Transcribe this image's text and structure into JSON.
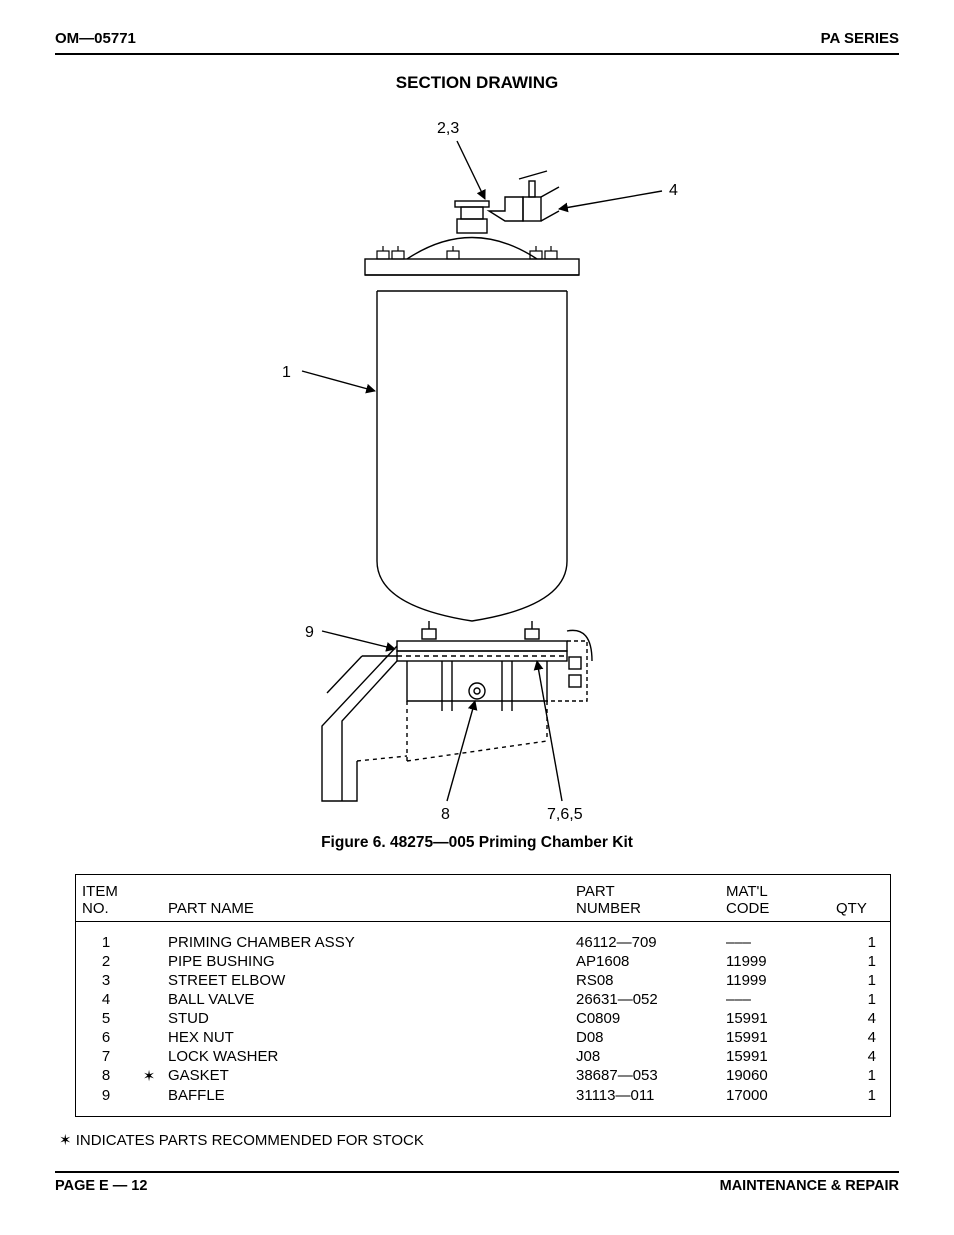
{
  "header": {
    "left": "OM—05771",
    "right": "PA SERIES"
  },
  "section_title": "SECTION DRAWING",
  "figure_caption": "Figure 6. 48275—005 Priming Chamber Kit",
  "drawing": {
    "callouts": {
      "c1": "1",
      "c23": "2,3",
      "c4": "4",
      "c9": "9",
      "c8": "8",
      "c765": "7,6,5"
    },
    "stroke": "#000000",
    "fill": "#ffffff",
    "font_family": "Verdana, Geneva, sans-serif",
    "font_size": 16
  },
  "table": {
    "headers": {
      "item": "ITEM\nNO.",
      "star": "",
      "name": "PART NAME",
      "part": "PART\nNUMBER",
      "matl": "MAT'L\nCODE",
      "qty": "QTY"
    },
    "rows": [
      {
        "item": "1",
        "star": "",
        "name": "PRIMING CHAMBER ASSY",
        "part": "46112—709",
        "matl": "–––",
        "qty": "1"
      },
      {
        "item": "2",
        "star": "",
        "name": "PIPE BUSHING",
        "part": "AP1608",
        "matl": "11999",
        "qty": "1"
      },
      {
        "item": "3",
        "star": "",
        "name": "STREET ELBOW",
        "part": "RS08",
        "matl": "11999",
        "qty": "1"
      },
      {
        "item": "4",
        "star": "",
        "name": "BALL VALVE",
        "part": "26631—052",
        "matl": "–––",
        "qty": "1"
      },
      {
        "item": "5",
        "star": "",
        "name": "STUD",
        "part": "C0809",
        "matl": "15991",
        "qty": "4"
      },
      {
        "item": "6",
        "star": "",
        "name": "HEX NUT",
        "part": "D08",
        "matl": "15991",
        "qty": "4"
      },
      {
        "item": "7",
        "star": "",
        "name": "LOCK WASHER",
        "part": "J08",
        "matl": "15991",
        "qty": "4"
      },
      {
        "item": "8",
        "star": "✶",
        "name": "GASKET",
        "part": "38687—053",
        "matl": "19060",
        "qty": "1"
      },
      {
        "item": "9",
        "star": "",
        "name": "BAFFLE",
        "part": "31113—011",
        "matl": "17000",
        "qty": "1"
      }
    ]
  },
  "footnote": "✶ INDICATES PARTS RECOMMENDED FOR STOCK",
  "footer": {
    "left": "PAGE E — 12",
    "right": "MAINTENANCE & REPAIR"
  }
}
